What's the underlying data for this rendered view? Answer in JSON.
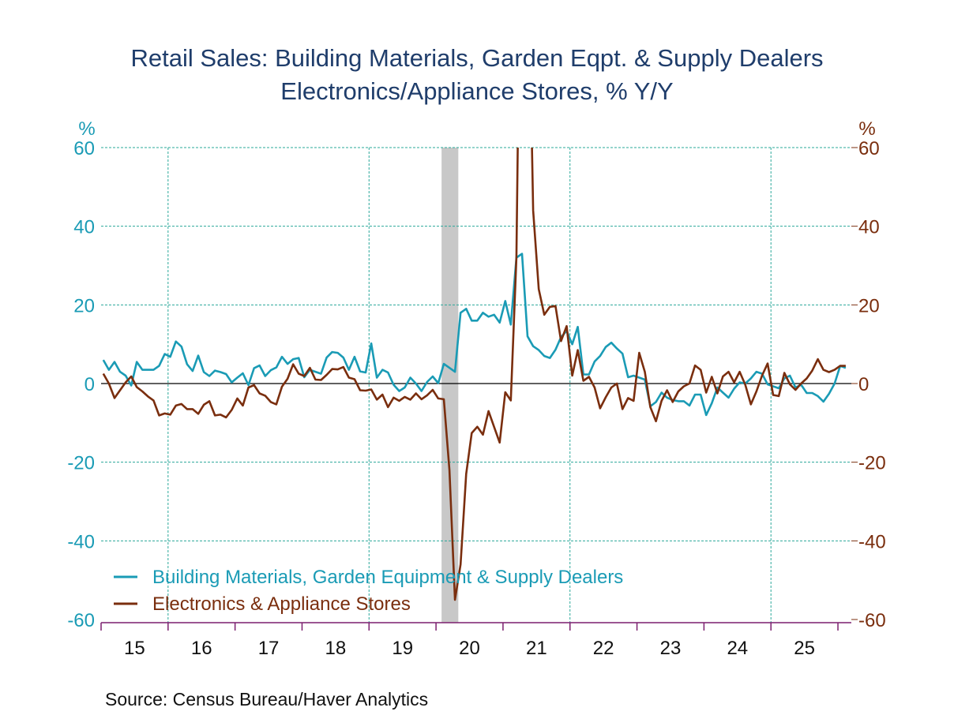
{
  "chart_data": {
    "type": "line",
    "title": "Retail Sales: Building Materials, Garden Eqpt. & Supply Dealers",
    "subtitle": "Electronics/Appliance Stores, % Y/Y",
    "ylabel_left": "%",
    "ylabel_right": "%",
    "ylim": [
      -60,
      60
    ],
    "yticks": [
      60,
      40,
      20,
      0,
      -20,
      -40,
      -60
    ],
    "xlim": [
      2015.0,
      2026.2
    ],
    "xtick_labels": [
      "15",
      "16",
      "17",
      "18",
      "19",
      "20",
      "21",
      "22",
      "23",
      "24",
      "25"
    ],
    "x_start": "2015-01",
    "frequency": "monthly",
    "grid": true,
    "legend_position": "bottom-left",
    "recession": [
      2020.083,
      2020.333
    ],
    "series": [
      {
        "name": "Building Materials, Garden Equipment & Supply Dealers",
        "color": "#1a9bb5",
        "axis": "left",
        "values": [
          6,
          3.5,
          5.5,
          3,
          2,
          -0.5,
          5.5,
          3.5,
          3.5,
          3.5,
          4.5,
          7.5,
          6.8,
          10.7,
          9.4,
          4.9,
          3.2,
          7.1,
          2.9,
          1.9,
          3.3,
          2.9,
          2.4,
          0.3,
          1.5,
          2.6,
          -0.4,
          3.9,
          4.6,
          1.9,
          3.4,
          4.1,
          6.8,
          5,
          6.2,
          6.5,
          1.6,
          3.5,
          3,
          2.5,
          6.6,
          8,
          7.8,
          6.6,
          3.5,
          6.8,
          3.1,
          2.8,
          10.2,
          1.5,
          3.5,
          2.8,
          -0.3,
          -1.9,
          -1,
          1.5,
          0,
          -1.9,
          0.4,
          1.8,
          0.1,
          5,
          4,
          3,
          18,
          19,
          16,
          16,
          18,
          17,
          17.5,
          15.5,
          21,
          15,
          32,
          33,
          12,
          9.5,
          8.5,
          7,
          6.5,
          8.6,
          11.8,
          13.4,
          10,
          14.4,
          2.3,
          2.3,
          5.6,
          7,
          9.3,
          10.4,
          8.9,
          7.6,
          1.6,
          2,
          1.5,
          1,
          -5.8,
          -4.7,
          -2.3,
          -3.6,
          -4.2,
          -4.5,
          -4.5,
          -5.6,
          -2.8,
          -2.8,
          -8,
          -5,
          -1,
          -2.3,
          -3.6,
          -1.3,
          0.3,
          0,
          1.3,
          3,
          2.5,
          -0.2,
          -0.7,
          -1.2,
          1.3,
          2,
          -1,
          -0.3,
          -2.4,
          -2.4,
          -3.2,
          -4.6,
          -2.6,
          0,
          4.5,
          4
        ]
      },
      {
        "name": "Electronics & Appliance Stores",
        "color": "#7a2e0e",
        "axis": "right",
        "values": [
          2.5,
          0,
          -3.7,
          -1.7,
          0.3,
          1.8,
          -0.9,
          -2,
          -3.3,
          -4.3,
          -8.1,
          -7.6,
          -7.9,
          -5.6,
          -5.2,
          -6.5,
          -6.5,
          -7.7,
          -5.4,
          -4.5,
          -8.1,
          -7.9,
          -8.6,
          -6.7,
          -3.8,
          -5.6,
          -1,
          -0.4,
          -2.5,
          -3.1,
          -4.7,
          -5.3,
          -0.8,
          1.2,
          4.9,
          2.5,
          1.9,
          4,
          1,
          0.9,
          2.2,
          3.7,
          3.6,
          4.2,
          1.5,
          1.1,
          -1.7,
          -1.8,
          -1.5,
          -4.1,
          -2.8,
          -6,
          -3.6,
          -4.4,
          -3.4,
          -4.1,
          -2.5,
          -4,
          -3,
          -1.6,
          -3.8,
          -4,
          -22,
          -55,
          -46,
          -23,
          -12.6,
          -11,
          -13,
          -7,
          -11,
          -15,
          -2.2,
          -4.3,
          32,
          150,
          120,
          44,
          24,
          17.5,
          19.5,
          19.7,
          10.8,
          14.6,
          2,
          8.5,
          0.7,
          1.7,
          -1,
          -6.3,
          -3.5,
          -1,
          0,
          -6.5,
          -3.7,
          -4.4,
          7.8,
          3,
          -6,
          -9.6,
          -4.4,
          -1.7,
          -4.7,
          -2,
          -0.7,
          0,
          4.6,
          3.5,
          -2.3,
          1.7,
          -2.5,
          1.8,
          3,
          0.3,
          3,
          -0.3,
          -5.3,
          -2,
          2,
          5.1,
          -2.9,
          -3.2,
          2.7,
          -0.2,
          -1.6,
          0,
          1.3,
          3.3,
          6.2,
          3.5,
          2.9,
          3.5,
          4.5,
          4.5
        ]
      }
    ],
    "source": "Source:  Census Bureau/Haver Analytics"
  }
}
